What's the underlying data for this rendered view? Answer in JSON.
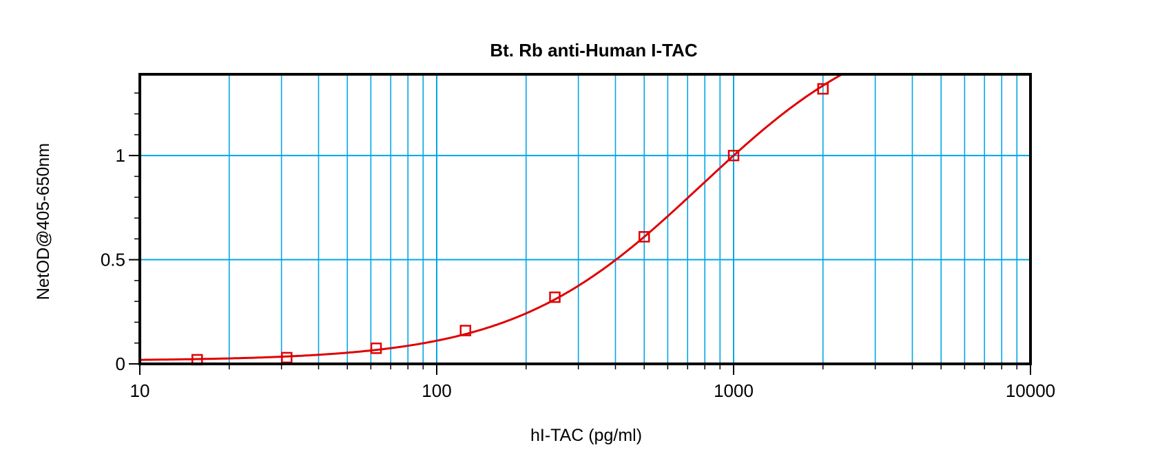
{
  "chart_data": {
    "type": "scatter",
    "title": "Bt. Rb anti-Human I-TAC",
    "xlabel": "hI-TAC (pg/ml)",
    "ylabel": "NetOD@405-650nm",
    "x_scale": "log",
    "xlim": [
      10,
      10000
    ],
    "ylim": [
      0,
      1.39
    ],
    "x_ticks": [
      "10",
      "100",
      "1000",
      "10000"
    ],
    "x_tick_values": [
      10,
      100,
      1000,
      10000
    ],
    "y_ticks": [
      "0",
      "0.5",
      "1"
    ],
    "y_tick_values": [
      0,
      0.5,
      1
    ],
    "grid": true,
    "series": [
      {
        "marker": "open-square",
        "fit": "4-parameter logistic curve",
        "color": "#e00000",
        "x": [
          15.6,
          31.25,
          62.5,
          125,
          250,
          500,
          1000,
          2000
        ],
        "y": [
          0.02,
          0.03,
          0.075,
          0.16,
          0.32,
          0.61,
          1.0,
          1.32
        ]
      }
    ],
    "colors": {
      "grid": "#00a6e6",
      "axis": "#000000",
      "series": "#e00000"
    }
  }
}
